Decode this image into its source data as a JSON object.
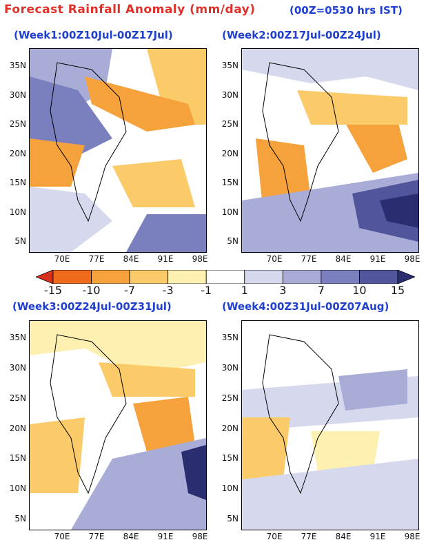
{
  "title": "Forecast Rainfall Anomaly (mm/day)",
  "subtitle": "(00Z=0530 hrs IST)",
  "panels": [
    {
      "title": "(Week1:00Z10Jul-00Z17Jul)",
      "id": "week1"
    },
    {
      "title": "(Week2:00Z17Jul-00Z24Jul)",
      "id": "week2"
    },
    {
      "title": "(Week3:00Z24Jul-00Z31Jul)",
      "id": "week3"
    },
    {
      "title": "(Week4:00Z31Jul-00Z07Aug)",
      "id": "week4"
    }
  ],
  "lat_labels": [
    "35N",
    "30N",
    "25N",
    "20N",
    "15N",
    "10N",
    "5N"
  ],
  "lon_labels": [
    "70E",
    "77E",
    "84E",
    "91E",
    "98E"
  ],
  "colorbar": {
    "labels": [
      "-15",
      "-10",
      "-7",
      "-3",
      "-1",
      "1",
      "3",
      "7",
      "10",
      "15"
    ],
    "colors": [
      "#d7301f",
      "#ef6b1b",
      "#f6a23c",
      "#fbcb6a",
      "#fdf0b0",
      "#ffffff",
      "#d6d8ee",
      "#a8acd6",
      "#7a7fbd",
      "#51569c",
      "#2a2d70"
    ]
  }
}
